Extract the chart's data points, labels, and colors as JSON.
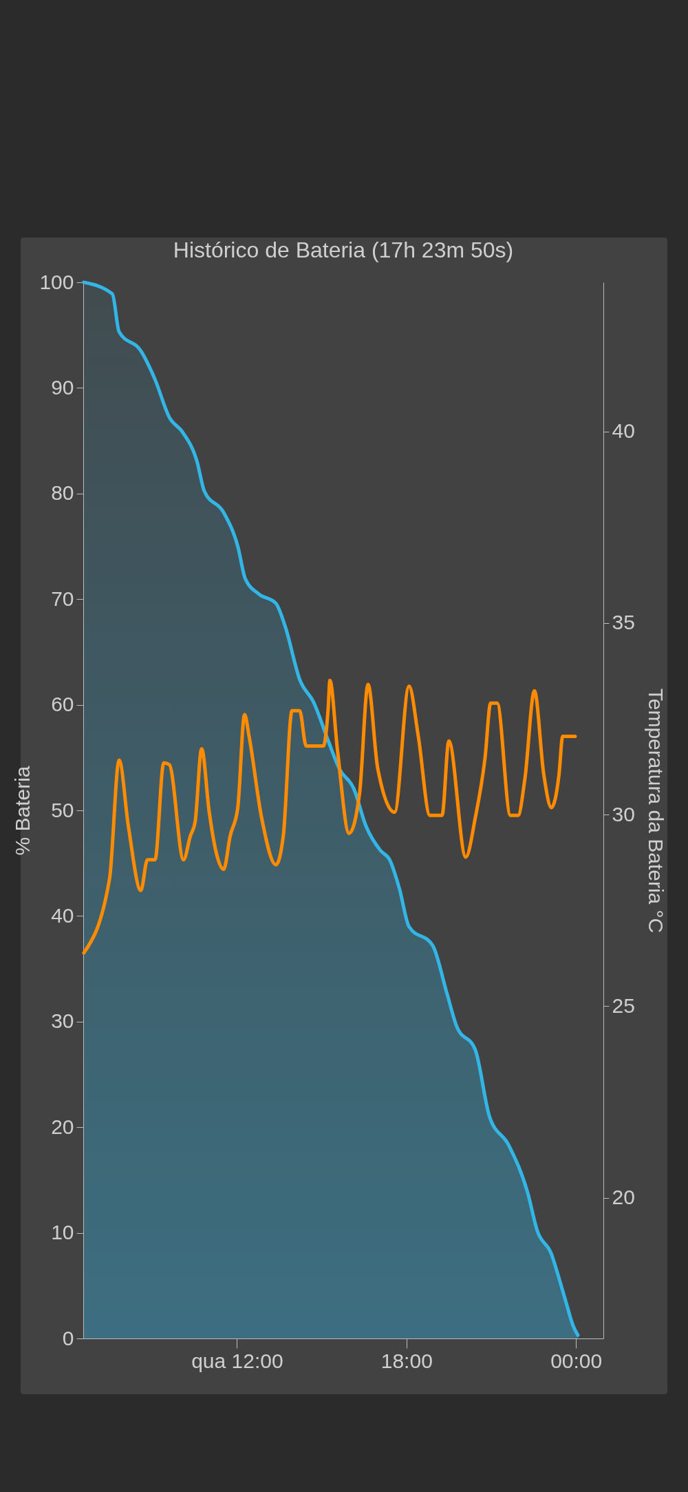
{
  "chart_data": {
    "type": "area",
    "title": "Histórico de Bateria (17h 23m 50s)",
    "ylabel": "% Bateria",
    "y2label": "Temperatura da Bateria °C",
    "xlim": [
      6.56,
      24.97
    ],
    "xticks": [
      {
        "value": 12,
        "label": "qua 12:00"
      },
      {
        "value": 18,
        "label": "18:00"
      },
      {
        "value": 24,
        "label": "00:00"
      }
    ],
    "ylim": [
      0,
      100
    ],
    "yticks": [
      0,
      10,
      20,
      30,
      40,
      50,
      60,
      70,
      80,
      90,
      100
    ],
    "y2lim": [
      16.33,
      43.89
    ],
    "y2ticks": [
      20,
      25,
      30,
      35,
      40
    ],
    "series": [
      {
        "type": "area",
        "color": "#33b5e5",
        "x": [
          6.58,
          7.59,
          7.83,
          8.6,
          9.1,
          9.61,
          10.08,
          10.58,
          10.85,
          11.53,
          12.03,
          12.3,
          12.77,
          13.38,
          13.71,
          14.22,
          14.72,
          15.23,
          15.63,
          16.13,
          16.57,
          17.08,
          17.41,
          17.75,
          18.09,
          18.93,
          19.43,
          19.77,
          20.44,
          20.94,
          21.62,
          22.29,
          22.63,
          23.13,
          23.4,
          23.64,
          23.9,
          24.07
        ],
        "values": [
          100,
          98.9,
          95.3,
          93.5,
          90.8,
          87.2,
          85.8,
          83.1,
          80.2,
          78.2,
          75,
          71.9,
          70.5,
          69.6,
          67.4,
          62.4,
          60.2,
          56.6,
          53.9,
          52.1,
          48.5,
          46.2,
          45.3,
          42.6,
          39,
          37.2,
          32.7,
          29.6,
          27.3,
          21,
          18.3,
          13.8,
          10.2,
          8,
          5.7,
          3.5,
          1.2,
          0.3
        ]
      },
      {
        "type": "line",
        "axis": "y2",
        "color": "#ff8c00",
        "x": [
          6.58,
          7.49,
          7.83,
          8.16,
          8.6,
          8.83,
          9.1,
          9.41,
          9.61,
          10.11,
          10.35,
          10.52,
          10.75,
          11.02,
          11.29,
          11.53,
          11.76,
          12.03,
          12.27,
          12.43,
          12.87,
          13.38,
          13.64,
          13.95,
          14.22,
          14.45,
          15.06,
          15.23,
          15.29,
          15.56,
          15.97,
          16.34,
          16.64,
          16.98,
          17.58,
          18.09,
          18.42,
          18.83,
          19.26,
          19.5,
          20.1,
          20.44,
          20.78,
          20.98,
          21.21,
          21.68,
          21.95,
          22.19,
          22.53,
          22.86,
          23.13,
          23.4,
          23.53,
          23.97
        ],
        "values": [
          26.39,
          28.32,
          31.42,
          29.68,
          28.02,
          28.82,
          28.82,
          31.35,
          31.3,
          28.82,
          29.44,
          29.81,
          31.72,
          30.06,
          28.94,
          28.57,
          29.44,
          30.18,
          32.61,
          32.04,
          29.93,
          28.69,
          29.44,
          32.71,
          32.71,
          31.79,
          31.79,
          32.78,
          33.5,
          31.67,
          29.51,
          30.55,
          33.4,
          31.22,
          30.06,
          33.35,
          32.04,
          29.98,
          29.98,
          31.92,
          28.89,
          29.93,
          31.47,
          32.91,
          32.91,
          29.98,
          29.98,
          30.92,
          33.23,
          31.05,
          30.18,
          31.05,
          32.04,
          32.04
        ]
      }
    ]
  }
}
